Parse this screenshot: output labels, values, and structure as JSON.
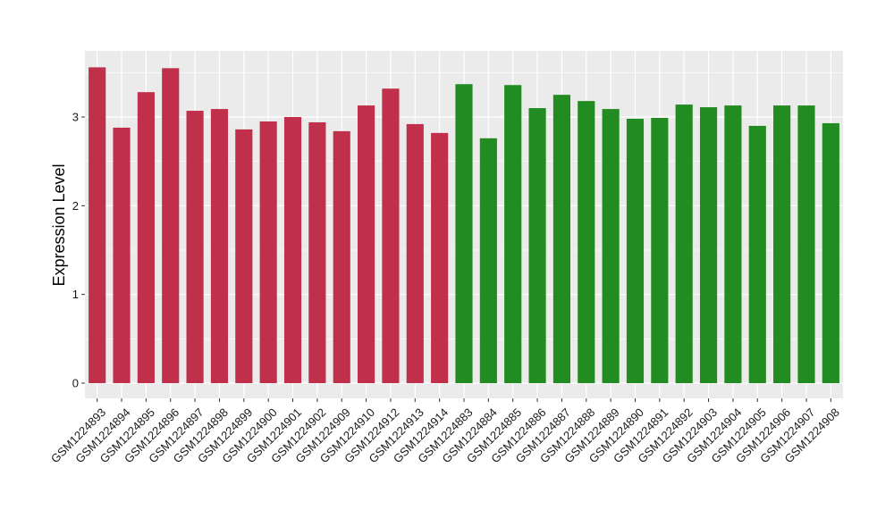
{
  "chart_data": {
    "type": "bar",
    "title": "",
    "xlabel": "",
    "ylabel": "Expression Level",
    "ylim": [
      0,
      3.65
    ],
    "yticks": [
      0,
      1,
      2,
      3
    ],
    "grid": true,
    "legend": "none",
    "categories": [
      "GSM1224893",
      "GSM1224894",
      "GSM1224895",
      "GSM1224896",
      "GSM1224897",
      "GSM1224898",
      "GSM1224899",
      "GSM1224900",
      "GSM1224901",
      "GSM1224902",
      "GSM1224909",
      "GSM1224910",
      "GSM1224912",
      "GSM1224913",
      "GSM1224914",
      "GSM1224883",
      "GSM1224884",
      "GSM1224885",
      "GSM1224886",
      "GSM1224887",
      "GSM1224888",
      "GSM1224889",
      "GSM1224890",
      "GSM1224891",
      "GSM1224892",
      "GSM1224903",
      "GSM1224904",
      "GSM1224905",
      "GSM1224906",
      "GSM1224907",
      "GSM1224908"
    ],
    "values": [
      3.56,
      2.88,
      3.28,
      3.55,
      3.07,
      3.09,
      2.86,
      2.95,
      3.0,
      2.94,
      2.84,
      3.13,
      3.32,
      2.92,
      2.82,
      3.37,
      2.76,
      3.36,
      3.1,
      3.25,
      3.18,
      3.09,
      2.98,
      2.99,
      3.14,
      3.11,
      3.13,
      2.9,
      3.13,
      3.13,
      2.93
    ],
    "group_colors": [
      "#C0304A",
      "#C0304A",
      "#C0304A",
      "#C0304A",
      "#C0304A",
      "#C0304A",
      "#C0304A",
      "#C0304A",
      "#C0304A",
      "#C0304A",
      "#C0304A",
      "#C0304A",
      "#C0304A",
      "#C0304A",
      "#C0304A",
      "#228B22",
      "#228B22",
      "#228B22",
      "#228B22",
      "#228B22",
      "#228B22",
      "#228B22",
      "#228B22",
      "#228B22",
      "#228B22",
      "#228B22",
      "#228B22",
      "#228B22",
      "#228B22",
      "#228B22",
      "#228B22"
    ]
  },
  "style": {
    "panel_background": "#EBEBEB",
    "grid_color": "#FFFFFF",
    "tick_color": "#333333",
    "text_color": "#1a1a1a"
  }
}
